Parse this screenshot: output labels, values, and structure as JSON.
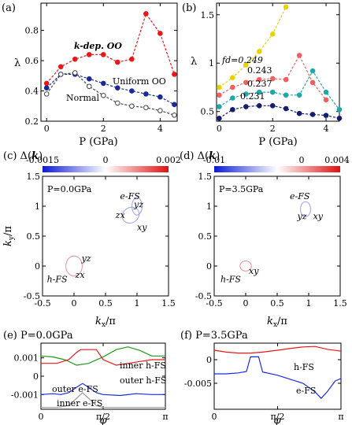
{
  "chart_data": [
    {
      "panel": "(a)",
      "type": "line",
      "xlabel": "P (GPa)",
      "ylabel": "λ",
      "xlim": [
        -0.2,
        4.6
      ],
      "ylim": [
        0.2,
        0.98
      ],
      "xticks": [
        0,
        2,
        4
      ],
      "xticklabels": [
        "0",
        "2",
        "4"
      ],
      "yticks": [
        0.2,
        0.4,
        0.6,
        0.8
      ],
      "yticklabels": [
        "0.2",
        "0.4",
        "0.6",
        "0.8"
      ],
      "series": [
        {
          "name": "k-dep. OO",
          "color": "#e8181a",
          "fill": true,
          "x": [
            0,
            0.5,
            1,
            1.5,
            2,
            2.5,
            3,
            3.5,
            4,
            4.5
          ],
          "y": [
            0.45,
            0.56,
            0.61,
            0.64,
            0.64,
            0.59,
            0.61,
            0.91,
            0.78,
            0.51
          ]
        },
        {
          "name": "Uniform OO",
          "color": "#1a2a9a",
          "fill": true,
          "x": [
            0,
            0.5,
            1,
            1.5,
            2,
            2.5,
            3,
            3.5,
            4,
            4.5
          ],
          "y": [
            0.42,
            0.51,
            0.51,
            0.48,
            0.45,
            0.42,
            0.4,
            0.38,
            0.36,
            0.31
          ]
        },
        {
          "name": "Normal",
          "color": "#444444",
          "fill": false,
          "x": [
            0,
            0.5,
            1,
            1.5,
            2,
            2.5,
            3,
            3.5,
            4,
            4.5
          ],
          "y": [
            0.38,
            0.51,
            0.52,
            0.43,
            0.37,
            0.32,
            0.3,
            0.29,
            0.27,
            0.24
          ]
        }
      ]
    },
    {
      "panel": "(b)",
      "type": "line",
      "xlabel": "P (GPa)",
      "ylabel": "λ",
      "xlim": [
        -0.1,
        4.5
      ],
      "ylim": [
        0.4,
        1.62
      ],
      "xticks": [
        0,
        2,
        4
      ],
      "xticklabels": [
        "0",
        "2",
        "4"
      ],
      "yticks": [
        0.5,
        1,
        1.5
      ],
      "yticklabels": [
        "0.5",
        "1",
        "1.5"
      ],
      "series": [
        {
          "name": "fd=0.249",
          "color": "#e6d400",
          "x": [
            0,
            0.5,
            1,
            1.5,
            2,
            2.5
          ],
          "y": [
            0.75,
            0.85,
            0.98,
            1.12,
            1.3,
            1.58
          ]
        },
        {
          "name": "0.243",
          "color": "#f06060",
          "x": [
            0,
            0.5,
            1,
            1.5,
            2,
            2.5,
            3,
            3.5,
            4
          ],
          "y": [
            0.67,
            0.75,
            0.8,
            0.83,
            0.84,
            0.83,
            1.08,
            0.8,
            0.62
          ]
        },
        {
          "name": "0.237",
          "color": "#20a8a8",
          "x": [
            0,
            0.5,
            1,
            1.5,
            2,
            2.5,
            3,
            3.5,
            4,
            4.5
          ],
          "y": [
            0.55,
            0.64,
            0.68,
            0.7,
            0.7,
            0.67,
            0.67,
            0.92,
            0.7,
            0.52
          ]
        },
        {
          "name": "0.231",
          "color": "#141c6e",
          "x": [
            0,
            0.5,
            1,
            1.5,
            2,
            2.5,
            3,
            3.5,
            4,
            4.5
          ],
          "y": [
            0.43,
            0.52,
            0.55,
            0.56,
            0.56,
            0.53,
            0.48,
            0.47,
            0.46,
            0.43
          ]
        }
      ]
    },
    {
      "panel": "(c)",
      "type": "scatter",
      "title_prefix": "(c) Δ(",
      "title_var": "k",
      "title_suffix": ")",
      "colorbar_ticks": [
        "-0.0015",
        "0",
        "0.002"
      ],
      "pressure_label": "P=0.0GPa",
      "xlabel_var": "k",
      "xlabel_sub": "x",
      "xlabel_unit": "/π",
      "ylabel_var": "k",
      "ylabel_sub": "y",
      "ylabel_unit": "/π",
      "xlim": [
        -0.5,
        1.5
      ],
      "ylim": [
        -0.5,
        1.5
      ],
      "xticks": [
        -0.5,
        0,
        0.5,
        1,
        1.5
      ],
      "xticklabels": [
        "-0.5",
        "0",
        "0.5",
        "1",
        "1.5"
      ],
      "yticks": [
        -0.5,
        0,
        0.5,
        1,
        1.5
      ],
      "yticklabels": [
        "-0.5",
        "0",
        "0.5",
        "1",
        "1.5"
      ],
      "labels": [
        {
          "text": "e-FS",
          "x": 0.73,
          "y": 1.12
        },
        {
          "text": "yz",
          "x": 0.95,
          "y": 0.98
        },
        {
          "text": "zx",
          "x": 0.66,
          "y": 0.8
        },
        {
          "text": "xy",
          "x": 1.0,
          "y": 0.6
        },
        {
          "text": "yz",
          "x": 0.12,
          "y": 0.08
        },
        {
          "text": "zx",
          "x": 0.02,
          "y": -0.2
        },
        {
          "text": "h-FS",
          "x": -0.43,
          "y": -0.27
        }
      ]
    },
    {
      "panel": "(d)",
      "type": "scatter",
      "title_prefix": "(d) Δ(",
      "title_var": "k",
      "title_suffix": ")",
      "colorbar_ticks": [
        "-0.01",
        "0",
        "0.004"
      ],
      "pressure_label": "P=3.5GPa",
      "xlabel_var": "k",
      "xlabel_sub": "x",
      "xlabel_unit": "/π",
      "xlim": [
        -0.5,
        1.5
      ],
      "ylim": [
        -0.5,
        1.5
      ],
      "xticks": [
        -0.5,
        0,
        0.5,
        1,
        1.5
      ],
      "xticklabels": [
        "-0.5",
        "0",
        "0.5",
        "1",
        "1.5"
      ],
      "yticks": [
        -0.5,
        0,
        0.5,
        1,
        1.5
      ],
      "yticklabels": [
        "-0.5",
        "0",
        "0.5",
        "1",
        "1.5"
      ],
      "labels": [
        {
          "text": "e-FS",
          "x": 0.7,
          "y": 1.12
        },
        {
          "text": "yz",
          "x": 0.82,
          "y": 0.78
        },
        {
          "text": "xy",
          "x": 1.07,
          "y": 0.78
        },
        {
          "text": "xy",
          "x": 0.05,
          "y": -0.13
        },
        {
          "text": "h-FS",
          "x": -0.4,
          "y": -0.27
        }
      ]
    },
    {
      "panel": "(e)",
      "type": "line",
      "title": "(e) P=0.0GPa",
      "xlabel": "φ",
      "ylabel": "Δ",
      "xlim": [
        0,
        3.1416
      ],
      "ylim": [
        -0.0018,
        0.0018
      ],
      "xticks": [
        0,
        1.5708,
        3.1416
      ],
      "xticklabels": [
        "0",
        "π/2",
        "π"
      ],
      "yticks": [
        0.001,
        0,
        -0.001
      ],
      "yticklabels": [
        "0.001",
        "0",
        "-0.001"
      ],
      "series": [
        {
          "name": "inner h-FS",
          "color": "#1a9a1a",
          "x": [
            0,
            0.3,
            0.6,
            0.9,
            1.2,
            1.5708,
            1.9,
            2.2,
            2.5,
            2.8,
            3.1416
          ],
          "y": [
            0.0011,
            0.00105,
            0.0009,
            0.0006,
            0.0007,
            0.00105,
            0.00145,
            0.0016,
            0.0014,
            0.0011,
            0.0011
          ]
        },
        {
          "name": "outer h-FS",
          "color": "#e8181a",
          "x": [
            0,
            0.4,
            0.7,
            0.9,
            1.0,
            1.4,
            1.5708,
            1.9,
            2.2,
            2.5,
            2.8,
            3.1416
          ],
          "y": [
            0.0007,
            0.0007,
            0.0009,
            0.0013,
            0.00145,
            0.00145,
            0.0009,
            0.0006,
            0.0007,
            0.0008,
            0.0009,
            0.0009
          ]
        },
        {
          "name": "outer e-FS",
          "color": "#1a2ae8",
          "x": [
            0,
            0.3,
            0.5,
            0.7,
            0.9,
            1.05,
            1.2,
            1.4,
            1.5708,
            2.0,
            2.4,
            2.8,
            3.1416
          ],
          "y": [
            -0.001,
            -0.00095,
            -0.001,
            -0.0009,
            -0.0006,
            -0.0004,
            -0.0006,
            -0.0009,
            -0.001,
            -0.00105,
            -0.00095,
            -0.001,
            -0.001
          ]
        },
        {
          "name": "inner e-FS",
          "color": "#9a9a9a",
          "x": [
            0,
            0.4,
            0.7,
            0.9,
            1.05,
            1.2,
            1.4,
            1.5708,
            2.2,
            3.1416
          ],
          "y": [
            -0.0017,
            -0.0017,
            -0.0016,
            -0.0012,
            -0.0009,
            -0.0012,
            -0.0016,
            -0.0017,
            -0.0017,
            -0.0017
          ]
        }
      ]
    },
    {
      "panel": "(f)",
      "type": "line",
      "title": "(f) P=3.5GPa",
      "xlabel": "φ",
      "ylabel": "Δ",
      "xlim": [
        0,
        3.1416
      ],
      "ylim": [
        -0.0105,
        0.0035
      ],
      "xticks": [
        0,
        1.5708,
        3.1416
      ],
      "xticklabels": [
        "0",
        "π/2",
        "π"
      ],
      "yticks": [
        0,
        -0.005
      ],
      "yticklabels": [
        "0",
        "-0.005"
      ],
      "series": [
        {
          "name": "h-FS",
          "color": "#e8181a",
          "x": [
            0,
            0.3,
            0.6,
            0.9,
            1.2,
            1.5708,
            1.9,
            2.2,
            2.5,
            2.8,
            3.1416
          ],
          "y": [
            0.002,
            0.0016,
            0.0014,
            0.0014,
            0.0016,
            0.002,
            0.0024,
            0.0027,
            0.0028,
            0.0022,
            0.0018
          ]
        },
        {
          "name": "e-FS",
          "color": "#1a2ae8",
          "x": [
            0,
            0.3,
            0.6,
            0.8,
            0.9,
            1.1,
            1.2,
            1.5708,
            1.9,
            2.2,
            2.5,
            2.65,
            2.8,
            3.0,
            3.1416
          ],
          "y": [
            -0.003,
            -0.003,
            -0.0028,
            -0.0025,
            0.0006,
            0.0006,
            -0.0026,
            -0.0033,
            -0.0042,
            -0.005,
            -0.0068,
            -0.0082,
            -0.0068,
            -0.0045,
            -0.004
          ]
        }
      ]
    }
  ]
}
